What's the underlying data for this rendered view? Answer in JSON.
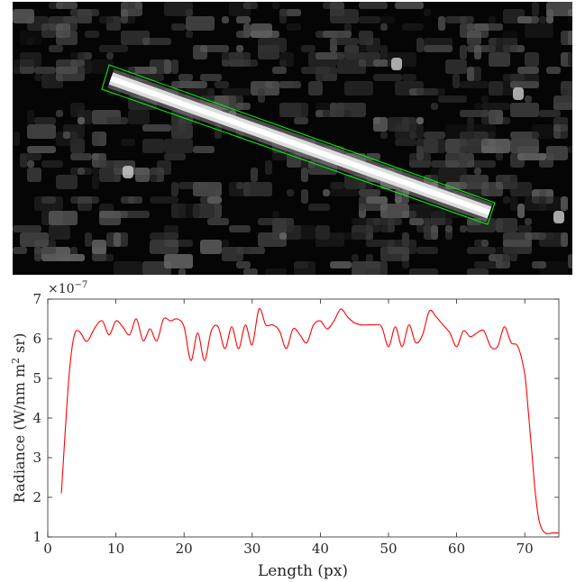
{
  "top_panel": {
    "description_label": "",
    "noise_seed": 7,
    "streak_outline_color": "#00ff00",
    "background_color": "#000000"
  },
  "chart_data": {
    "type": "line",
    "title": "",
    "xlabel": "Length (px)",
    "ylabel": "Radiance (W/nm m² sr)",
    "ylabel_parts": {
      "main": "Radiance (W/nm m",
      "sup": "2",
      "tail": " sr)"
    },
    "y_multiplier": {
      "base": "×10",
      "exp": "−7"
    },
    "xlim": [
      0,
      75
    ],
    "ylim": [
      1,
      7
    ],
    "xticks": [
      0,
      10,
      20,
      30,
      40,
      50,
      60,
      70
    ],
    "yticks": [
      1,
      2,
      3,
      4,
      5,
      6,
      7
    ],
    "grid": false,
    "line_color": "#ff0000",
    "series": [
      {
        "name": "",
        "x": [
          2,
          2.5,
          3,
          3.5,
          4,
          4.5,
          5,
          5.5,
          6,
          7,
          8,
          9,
          10,
          11,
          12,
          13,
          14,
          15,
          16,
          17,
          18,
          19,
          20,
          21,
          22,
          23,
          24,
          25,
          26,
          27,
          28,
          29,
          30,
          31,
          32,
          33,
          34,
          35,
          36,
          37,
          38,
          39,
          40,
          41,
          42,
          43,
          44,
          45,
          46,
          47,
          48,
          49,
          50,
          51,
          52,
          53,
          54,
          55,
          56,
          57,
          58,
          59,
          60,
          61,
          62,
          63,
          64,
          65,
          66,
          67,
          68,
          69,
          70,
          70.5,
          71,
          71.5,
          72,
          72.5,
          73,
          73.5,
          74,
          75
        ],
        "y": [
          2.1,
          3.5,
          4.8,
          5.7,
          6.15,
          6.2,
          6.1,
          5.95,
          5.98,
          6.3,
          6.45,
          6.1,
          6.45,
          6.3,
          6.1,
          6.5,
          5.95,
          6.25,
          5.95,
          6.5,
          6.45,
          6.5,
          6.3,
          5.45,
          6.15,
          5.45,
          6.2,
          6.3,
          5.75,
          6.3,
          5.75,
          6.35,
          5.85,
          6.75,
          6.35,
          6.35,
          6.2,
          5.75,
          6.25,
          6.1,
          5.9,
          6.35,
          6.45,
          6.25,
          6.45,
          6.75,
          6.55,
          6.4,
          6.35,
          6.35,
          6.35,
          6.3,
          5.8,
          6.3,
          5.8,
          6.35,
          5.9,
          6.1,
          6.7,
          6.55,
          6.35,
          6.15,
          5.8,
          6.2,
          6.05,
          6.15,
          6.2,
          5.8,
          5.8,
          6.3,
          5.9,
          5.8,
          5.1,
          4.2,
          3.2,
          2.2,
          1.5,
          1.2,
          1.1,
          1.08,
          1.1,
          1.1
        ]
      }
    ]
  }
}
